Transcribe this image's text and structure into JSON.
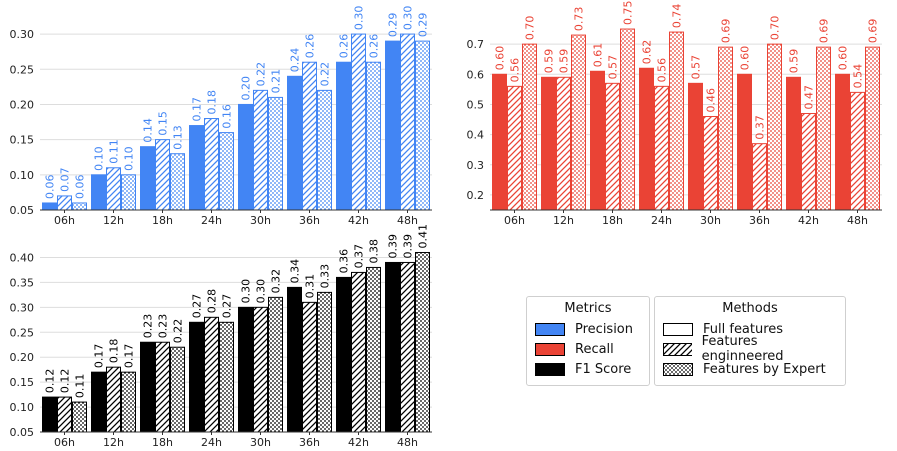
{
  "colors": {
    "precision": "#4285f4",
    "recall": "#ea4335",
    "f1": "#000000",
    "axis": "#333333",
    "grid": "#dddddd"
  },
  "legends": {
    "metrics": {
      "title": "Metrics",
      "items": [
        {
          "label": "Precision",
          "color": "#4285f4"
        },
        {
          "label": "Recall",
          "color": "#ea4335"
        },
        {
          "label": "F1 Score",
          "color": "#000000"
        }
      ]
    },
    "methods": {
      "title": "Methods",
      "items": [
        {
          "label": "Full features",
          "pattern": "solid"
        },
        {
          "label": "Features enginneered",
          "pattern": "hatch"
        },
        {
          "label": "Features by Expert",
          "pattern": "dots"
        }
      ]
    }
  },
  "chart_data": [
    {
      "type": "bar",
      "metric": "Precision",
      "categories": [
        "06h",
        "12h",
        "18h",
        "24h",
        "30h",
        "36h",
        "42h",
        "48h"
      ],
      "series": [
        {
          "name": "Full features",
          "values": [
            0.06,
            0.1,
            0.14,
            0.17,
            0.2,
            0.24,
            0.26,
            0.29
          ]
        },
        {
          "name": "Features enginneered",
          "values": [
            0.07,
            0.11,
            0.15,
            0.18,
            0.22,
            0.26,
            0.3,
            0.3
          ]
        },
        {
          "name": "Features by Expert",
          "values": [
            0.06,
            0.1,
            0.13,
            0.16,
            0.21,
            0.22,
            0.26,
            0.29
          ]
        }
      ],
      "yticks": [
        "0.05",
        "0.10",
        "0.15",
        "0.20",
        "0.25",
        "0.30"
      ],
      "ylim": [
        0.05,
        0.32
      ]
    },
    {
      "type": "bar",
      "metric": "Recall",
      "categories": [
        "06h",
        "12h",
        "18h",
        "24h",
        "30h",
        "36h",
        "42h",
        "48h"
      ],
      "series": [
        {
          "name": "Full features",
          "values": [
            0.6,
            0.59,
            0.61,
            0.62,
            0.57,
            0.6,
            0.59,
            0.6
          ]
        },
        {
          "name": "Features enginneered",
          "values": [
            0.56,
            0.59,
            0.57,
            0.56,
            0.46,
            0.37,
            0.47,
            0.54
          ]
        },
        {
          "name": "Features by Expert",
          "values": [
            0.7,
            0.73,
            0.75,
            0.74,
            0.69,
            0.7,
            0.69,
            0.69
          ]
        }
      ],
      "yticks": [
        "0.2",
        "0.3",
        "0.4",
        "0.5",
        "0.6",
        "0.7"
      ],
      "ylim": [
        0.15,
        0.78
      ]
    },
    {
      "type": "bar",
      "metric": "F1 Score",
      "categories": [
        "06h",
        "12h",
        "18h",
        "24h",
        "30h",
        "36h",
        "42h",
        "48h"
      ],
      "series": [
        {
          "name": "Full features",
          "values": [
            0.12,
            0.17,
            0.23,
            0.27,
            0.3,
            0.34,
            0.36,
            0.39
          ]
        },
        {
          "name": "Features enginneered",
          "values": [
            0.12,
            0.18,
            0.23,
            0.28,
            0.3,
            0.31,
            0.37,
            0.39
          ]
        },
        {
          "name": "Features by Expert",
          "values": [
            0.11,
            0.17,
            0.22,
            0.27,
            0.32,
            0.33,
            0.38,
            0.41
          ]
        }
      ],
      "yticks": [
        "0.05",
        "0.10",
        "0.15",
        "0.20",
        "0.25",
        "0.30",
        "0.35",
        "0.40"
      ],
      "ylim": [
        0.05,
        0.425
      ]
    }
  ]
}
